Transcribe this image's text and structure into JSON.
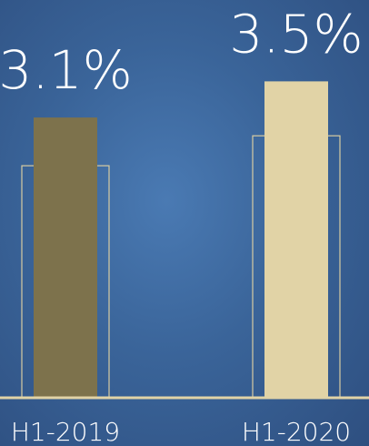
{
  "chart_data": {
    "type": "bar",
    "categories": [
      "H1-2019",
      "H1-2020"
    ],
    "series": [
      {
        "values": [
          3.1,
          3.5
        ]
      }
    ],
    "data_labels": [
      "3.1%",
      "3.5%"
    ],
    "title": "",
    "xlabel": "",
    "ylabel": "",
    "ylim": [
      0,
      4.4
    ],
    "grid": false,
    "legend": "none",
    "colors": {
      "bars": [
        "#7d724c",
        "#e1d3a6"
      ],
      "outline": "#d8cca2",
      "axis": "#e1d3a6"
    }
  }
}
